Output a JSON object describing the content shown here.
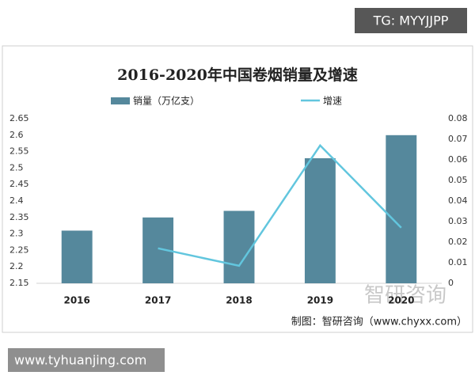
{
  "chart_data": {
    "type": "bar",
    "title": "2016-2020年中国卷烟销量及增速",
    "categories": [
      "2016",
      "2017",
      "2018",
      "2019",
      "2020"
    ],
    "series": [
      {
        "name": "销量（万亿支）",
        "type": "bar",
        "color": "#55889c",
        "values": [
          2.31,
          2.35,
          2.37,
          2.53,
          2.6
        ]
      },
      {
        "name": "增速",
        "type": "line",
        "axis": "y2",
        "color": "#62c6de",
        "values": [
          null,
          0.017,
          0.0085,
          0.067,
          0.027
        ]
      }
    ],
    "ylim": [
      2.15,
      2.65
    ],
    "yticks": [
      2.15,
      2.2,
      2.25,
      2.3,
      2.35,
      2.4,
      2.45,
      2.5,
      2.55,
      2.6,
      2.65
    ],
    "y2lim": [
      0,
      0.08
    ],
    "y2ticks": [
      0,
      0.01,
      0.02,
      0.03,
      0.04,
      0.05,
      0.06,
      0.07,
      0.08
    ],
    "grid": false
  },
  "page": {
    "tag": "TG: MYYJJPP",
    "watermark": "智研咨询",
    "credit": "制图：智研咨询（www.chyxx.com）",
    "site": "www.tyhuanjing.com"
  }
}
